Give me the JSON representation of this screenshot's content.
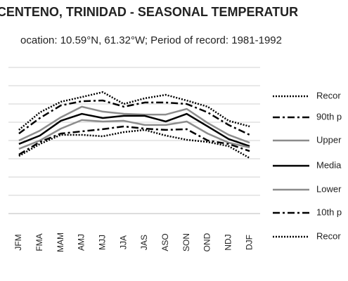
{
  "chart_data": {
    "type": "line",
    "title": "CENTENO, TRINIDAD - SEASONAL TEMPERATUR",
    "subtitle": "ocation: 10.59°N, 61.32°W; Period of record: 1981-1992",
    "categories": [
      "JFM",
      "FMA",
      "MAM",
      "AMJ",
      "MJJ",
      "JJA",
      "JAS",
      "ASO",
      "SON",
      "OND",
      "NDJ",
      "DJF"
    ],
    "ylim": [
      0,
      8
    ],
    "yticks": [
      1,
      2,
      3,
      4,
      5,
      6,
      7,
      8
    ],
    "grid": true,
    "series": [
      {
        "name": "Recor",
        "color": "#000000",
        "style": "dotted",
        "values": [
          4.58,
          5.54,
          6.12,
          6.38,
          6.65,
          6.0,
          6.31,
          6.5,
          6.19,
          5.85,
          5.08,
          4.77
        ]
      },
      {
        "name": "90th p",
        "color": "#000000",
        "style": "dashdot",
        "values": [
          4.38,
          5.23,
          5.92,
          6.15,
          6.19,
          5.85,
          6.08,
          6.08,
          6.0,
          5.54,
          4.85,
          4.31
        ]
      },
      {
        "name": "Upper",
        "color": "#8c8c8c",
        "style": "solid",
        "values": [
          4.0,
          4.54,
          5.27,
          5.85,
          5.58,
          5.46,
          5.42,
          5.42,
          5.73,
          4.96,
          4.31,
          3.88
        ]
      },
      {
        "name": "Media",
        "color": "#000000",
        "style": "solid",
        "values": [
          3.81,
          4.27,
          5.08,
          5.46,
          5.23,
          5.35,
          5.35,
          5.04,
          5.46,
          4.77,
          4.08,
          3.69
        ]
      },
      {
        "name": "Lower",
        "color": "#8c8c8c",
        "style": "solid",
        "values": [
          3.54,
          4.0,
          4.65,
          5.12,
          5.04,
          5.08,
          4.85,
          4.85,
          5.04,
          4.38,
          3.88,
          3.62
        ]
      },
      {
        "name": "10th p",
        "color": "#000000",
        "style": "dashdot",
        "values": [
          3.23,
          3.92,
          4.38,
          4.5,
          4.62,
          4.77,
          4.65,
          4.58,
          4.62,
          4.0,
          3.81,
          3.42
        ]
      },
      {
        "name": "Recor",
        "color": "#000000",
        "style": "dotted",
        "values": [
          3.15,
          3.81,
          4.31,
          4.31,
          4.23,
          4.46,
          4.58,
          4.27,
          4.04,
          3.92,
          3.69,
          3.04
        ]
      }
    ]
  }
}
